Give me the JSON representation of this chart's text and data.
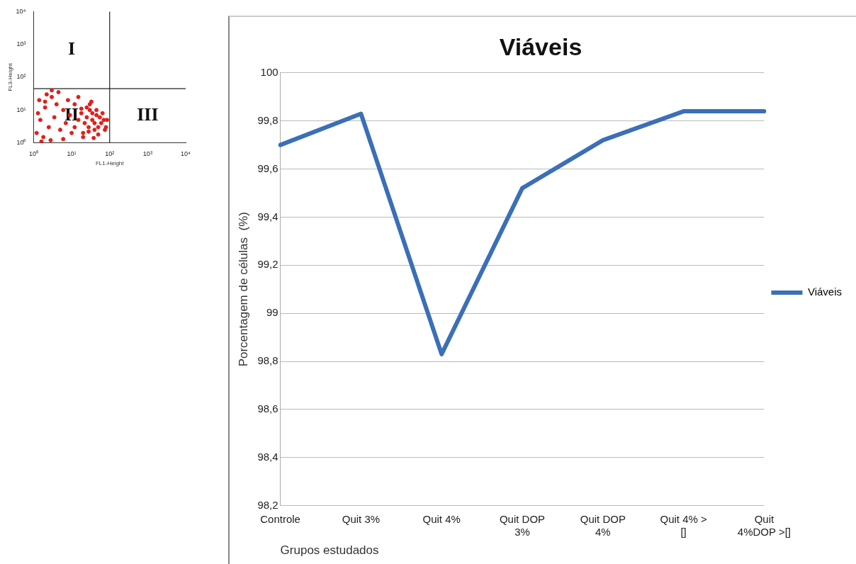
{
  "chart_data": [
    {
      "type": "scatter",
      "xlabel": "FL1-Height",
      "ylabel": "FL3-Height",
      "log": "xy",
      "marker": "circle",
      "xlim": [
        1,
        10000
      ],
      "ylim": [
        1,
        10000
      ],
      "xticks": [
        {
          "value": 1,
          "label": "10⁰"
        },
        {
          "value": 10,
          "label": "10¹"
        },
        {
          "value": 100,
          "label": "10²"
        },
        {
          "value": 1000,
          "label": "10³"
        },
        {
          "value": 10000,
          "label": "10⁴"
        }
      ],
      "yticks": [
        {
          "value": 1,
          "label": "10⁰"
        },
        {
          "value": 10,
          "label": "10¹"
        },
        {
          "value": 100,
          "label": "10²"
        },
        {
          "value": 1000,
          "label": "10³"
        },
        {
          "value": 10000,
          "label": "10⁴"
        }
      ],
      "series": [
        {
          "color": "#e0201c",
          "x": [
            1.2,
            1.5,
            2,
            2.5,
            3,
            1.3,
            1.8,
            2.2,
            3.5,
            4,
            5,
            6,
            1.4,
            2.8,
            4.5,
            7,
            9,
            12,
            15,
            18,
            20,
            22,
            25,
            28,
            30,
            35,
            40,
            45,
            50,
            55,
            60,
            70,
            80,
            25,
            30,
            35,
            40,
            20,
            18,
            45,
            50,
            28,
            33,
            38,
            15,
            12,
            10,
            8,
            6,
            3,
            2,
            1.6,
            65,
            75,
            85
          ],
          "values": [
            2,
            5,
            12,
            3,
            25,
            8,
            1.5,
            30,
            6,
            15,
            2.5,
            10,
            20,
            1.2,
            35,
            4,
            7,
            3,
            5,
            8,
            2,
            4,
            6,
            3,
            10,
            5,
            4,
            7,
            3,
            6,
            4,
            5,
            3,
            12,
            15,
            8,
            2.5,
            1.5,
            11,
            10,
            1.8,
            2.2,
            18,
            1.4,
            25,
            15,
            2,
            20,
            1.3,
            40,
            18,
            1.1,
            8,
            2.5,
            5
          ]
        }
      ],
      "ref_lines": [
        {
          "axis": "x",
          "value": 100
        },
        {
          "axis": "y",
          "value": 45
        }
      ],
      "annotations": [
        "I",
        "II",
        "III"
      ]
    },
    {
      "type": "line",
      "title": "Viáveis",
      "xlabel": "Grupos estudados",
      "ylabel": "Porcentagem de células  (%)",
      "categories": [
        "Controle",
        "Quit 3%",
        "Quit 4%",
        "Quit DOP 3%",
        "Quit DOP 4%",
        "Quit 4% > []",
        "Quit 4%DOP >[]"
      ],
      "series": [
        {
          "name": "Viáveis",
          "color": "#3b6fb6",
          "values": [
            99.7,
            99.83,
            98.83,
            99.52,
            99.72,
            99.84,
            99.84
          ]
        }
      ],
      "ylim": [
        98.2,
        100
      ],
      "yticks": [
        {
          "value": 98.2,
          "label": "98,2"
        },
        {
          "value": 98.4,
          "label": "98,4"
        },
        {
          "value": 98.6,
          "label": "98,6"
        },
        {
          "value": 98.8,
          "label": "98,8"
        },
        99,
        {
          "value": 99.2,
          "label": "99,2"
        },
        {
          "value": 99.4,
          "label": "99,4"
        },
        {
          "value": 99.6,
          "label": "99,6"
        },
        {
          "value": 99.8,
          "label": "99,8"
        },
        100
      ],
      "grid": "y",
      "legend": "right",
      "marker": "none",
      "line_style": "solid"
    }
  ]
}
